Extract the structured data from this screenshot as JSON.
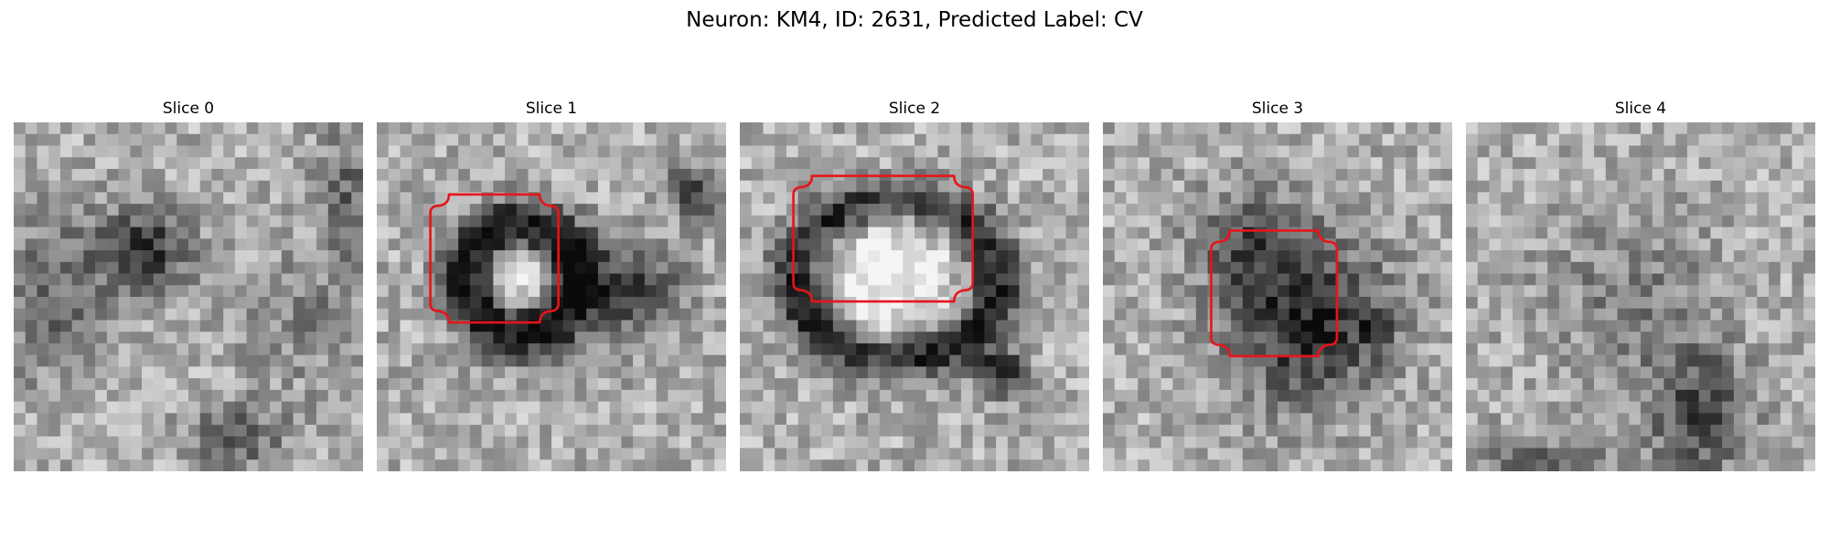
{
  "figure": {
    "title": "Neuron: KM4, ID: 2631, Predicted Label: CV"
  },
  "panels": [
    {
      "title": "Slice 0",
      "has_contour": false
    },
    {
      "title": "Slice 1",
      "has_contour": true
    },
    {
      "title": "Slice 2",
      "has_contour": true
    },
    {
      "title": "Slice 3",
      "has_contour": true
    },
    {
      "title": "Slice 4",
      "has_contour": false
    }
  ],
  "colors": {
    "contour": "#e8141a",
    "background": "#ffffff"
  },
  "image_style": "grayscale pixelated microscopy slice with red segmentation outline"
}
